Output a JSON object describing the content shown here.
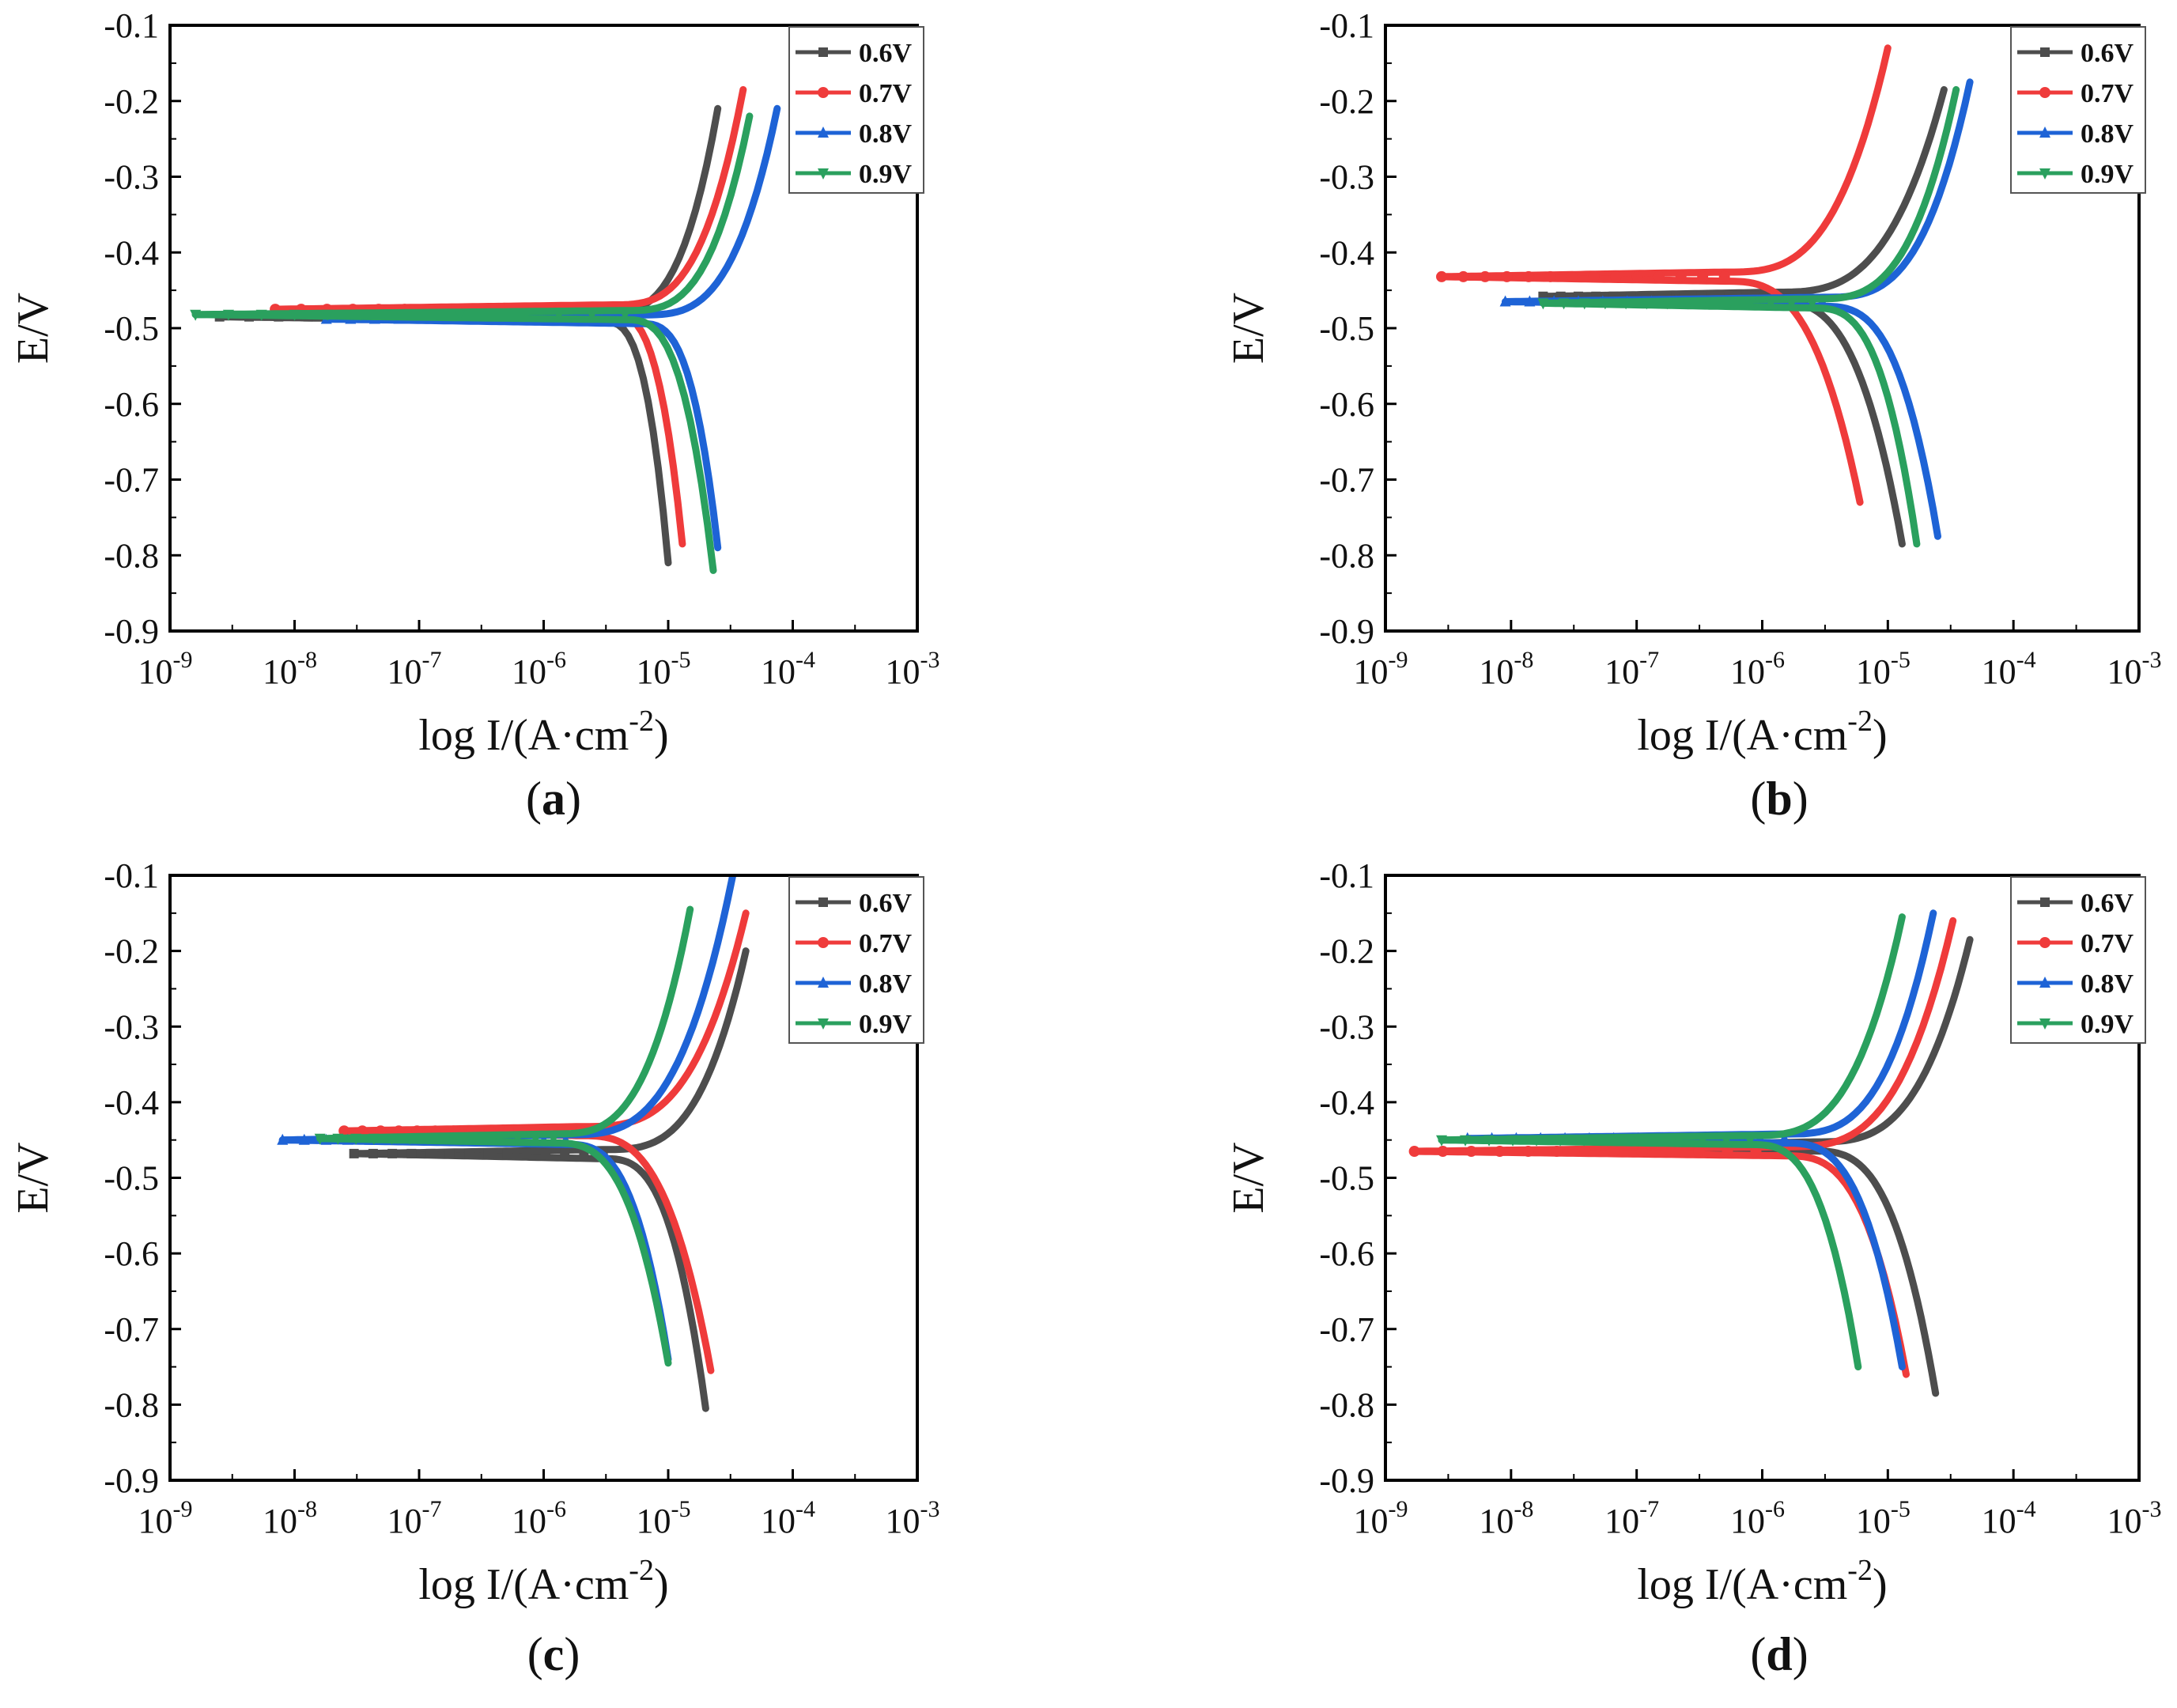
{
  "figure": {
    "panel_order": [
      "a",
      "b",
      "c",
      "d"
    ]
  },
  "series_colors": {
    "0.6V": "#4d4d4d",
    "0.7V": "#ef3b3b",
    "0.8V": "#1e63d6",
    "0.9V": "#2aa05e"
  },
  "chart_data": [
    {
      "id": "a",
      "type": "line",
      "caption_letter": "a",
      "xlabel_main": "log I/(A·cm",
      "xlabel_sup": "-2",
      "xlabel_close": ")",
      "ylabel": "E/V",
      "x_scale": "log",
      "xlim": [
        1e-09,
        0.001
      ],
      "ylim": [
        -0.9,
        -0.1
      ],
      "x_ticks": [
        -9,
        -8,
        -7,
        -6,
        -5,
        -4,
        -3
      ],
      "x_tick_base": "10",
      "y_ticks": [
        "-0.9",
        "-0.8",
        "-0.7",
        "-0.6",
        "-0.5",
        "-0.4",
        "-0.3",
        "-0.2",
        "-0.1"
      ],
      "legend_position": "top-right",
      "series": [
        {
          "name": "0.6V",
          "marker": "square",
          "ecorr": -0.485,
          "x_start": 2.5e-09,
          "icorr": 3e-06,
          "anodic_end": [
            2.5e-05,
            -0.21
          ],
          "cathodic_end": [
            1e-05,
            -0.81
          ]
        },
        {
          "name": "0.7V",
          "marker": "circle",
          "ecorr": -0.475,
          "x_start": 7e-09,
          "icorr": 3.5e-06,
          "anodic_end": [
            4e-05,
            -0.185
          ],
          "cathodic_end": [
            1.3e-05,
            -0.785
          ]
        },
        {
          "name": "0.8V",
          "marker": "triangle-up",
          "ecorr": -0.488,
          "x_start": 1.8e-08,
          "icorr": 6e-06,
          "anodic_end": [
            7.5e-05,
            -0.21
          ],
          "cathodic_end": [
            2.5e-05,
            -0.79
          ]
        },
        {
          "name": "0.9V",
          "marker": "triangle-down",
          "ecorr": -0.482,
          "x_start": 1.6e-09,
          "icorr": 4.5e-06,
          "anodic_end": [
            4.5e-05,
            -0.22
          ],
          "cathodic_end": [
            2.3e-05,
            -0.82
          ]
        }
      ]
    },
    {
      "id": "b",
      "type": "line",
      "caption_letter": "b",
      "xlabel_main": "log I/(A·cm",
      "xlabel_sup": "-2",
      "xlabel_close": ")",
      "ylabel": "E/V",
      "x_scale": "log",
      "xlim": [
        1e-09,
        0.001
      ],
      "ylim": [
        -0.9,
        -0.1
      ],
      "x_ticks": [
        -9,
        -8,
        -7,
        -6,
        -5,
        -4,
        -3
      ],
      "x_tick_base": "10",
      "y_ticks": [
        "-0.9",
        "-0.8",
        "-0.7",
        "-0.6",
        "-0.5",
        "-0.4",
        "-0.3",
        "-0.2",
        "-0.1"
      ],
      "legend_position": "top-right",
      "series": [
        {
          "name": "0.6V",
          "marker": "square",
          "ecorr": -0.458,
          "x_start": 1.8e-08,
          "icorr": 1.2e-06,
          "anodic_end": [
            2.8e-05,
            -0.185
          ],
          "cathodic_end": [
            1.3e-05,
            -0.785
          ]
        },
        {
          "name": "0.7V",
          "marker": "circle",
          "ecorr": -0.432,
          "x_start": 2.8e-09,
          "icorr": 5e-07,
          "anodic_end": [
            1e-05,
            -0.13
          ],
          "cathodic_end": [
            6e-06,
            -0.73
          ]
        },
        {
          "name": "0.8V",
          "marker": "triangle-up",
          "ecorr": -0.465,
          "x_start": 9e-09,
          "icorr": 3e-06,
          "anodic_end": [
            4.5e-05,
            -0.175
          ],
          "cathodic_end": [
            2.5e-05,
            -0.775
          ]
        },
        {
          "name": "0.9V",
          "marker": "triangle-down",
          "ecorr": -0.467,
          "x_start": 1.8e-08,
          "icorr": 2.5e-06,
          "anodic_end": [
            3.5e-05,
            -0.185
          ],
          "cathodic_end": [
            1.7e-05,
            -0.785
          ]
        }
      ]
    },
    {
      "id": "c",
      "type": "line",
      "caption_letter": "c",
      "xlabel_main": "log I/(A·cm",
      "xlabel_sup": "-2",
      "xlabel_close": ")",
      "ylabel": "E/V",
      "x_scale": "log",
      "xlim": [
        1e-09,
        0.001
      ],
      "ylim": [
        -0.9,
        -0.1
      ],
      "x_ticks": [
        -9,
        -8,
        -7,
        -6,
        -5,
        -4,
        -3
      ],
      "x_tick_base": "10",
      "y_ticks": [
        "-0.9",
        "-0.8",
        "-0.7",
        "-0.6",
        "-0.5",
        "-0.4",
        "-0.3",
        "-0.2",
        "-0.1"
      ],
      "legend_position": "top-right",
      "series": [
        {
          "name": "0.6V",
          "marker": "square",
          "ecorr": -0.468,
          "x_start": 3e-08,
          "icorr": 3e-06,
          "anodic_end": [
            4.2e-05,
            -0.2
          ],
          "cathodic_end": [
            2e-05,
            -0.805
          ]
        },
        {
          "name": "0.7V",
          "marker": "circle",
          "ecorr": -0.438,
          "x_start": 2.5e-08,
          "icorr": 2e-06,
          "anodic_end": [
            4.2e-05,
            -0.15
          ],
          "cathodic_end": [
            2.2e-05,
            -0.755
          ]
        },
        {
          "name": "0.8V",
          "marker": "triangle-up",
          "ecorr": -0.45,
          "x_start": 8e-09,
          "icorr": 1.5e-06,
          "anodic_end": [
            3.3e-05,
            -0.1
          ],
          "cathodic_end": [
            1e-05,
            -0.74
          ]
        },
        {
          "name": "0.9V",
          "marker": "triangle-down",
          "ecorr": -0.448,
          "x_start": 1.6e-08,
          "icorr": 1.2e-06,
          "anodic_end": [
            1.5e-05,
            -0.145
          ],
          "cathodic_end": [
            1e-05,
            -0.745
          ]
        }
      ]
    },
    {
      "id": "d",
      "type": "line",
      "caption_letter": "d",
      "xlabel_main": "log I/(A·cm",
      "xlabel_sup": "-2",
      "xlabel_close": ")",
      "ylabel": "E/V",
      "x_scale": "log",
      "xlim": [
        1e-09,
        0.001
      ],
      "ylim": [
        -0.9,
        -0.1
      ],
      "x_ticks": [
        -9,
        -8,
        -7,
        -6,
        -5,
        -4,
        -3
      ],
      "x_tick_base": "10",
      "y_ticks": [
        "-0.9",
        "-0.8",
        "-0.7",
        "-0.6",
        "-0.5",
        "-0.4",
        "-0.3",
        "-0.2",
        "-0.1"
      ],
      "legend_position": "top-right",
      "series": [
        {
          "name": "0.6V",
          "marker": "square",
          "ecorr": -0.458,
          "x_start": 6e-08,
          "icorr": 2.5e-06,
          "anodic_end": [
            4.5e-05,
            -0.185
          ],
          "cathodic_end": [
            2.4e-05,
            -0.785
          ]
        },
        {
          "name": "0.7V",
          "marker": "circle",
          "ecorr": -0.465,
          "x_start": 1.7e-09,
          "icorr": 1.5e-06,
          "anodic_end": [
            3.3e-05,
            -0.16
          ],
          "cathodic_end": [
            1.4e-05,
            -0.76
          ]
        },
        {
          "name": "0.8V",
          "marker": "triangle-up",
          "ecorr": -0.448,
          "x_start": 4.5e-09,
          "icorr": 1.5e-06,
          "anodic_end": [
            2.3e-05,
            -0.15
          ],
          "cathodic_end": [
            1.3e-05,
            -0.75
          ]
        },
        {
          "name": "0.9V",
          "marker": "triangle-down",
          "ecorr": -0.45,
          "x_start": 2.8e-09,
          "icorr": 8e-07,
          "anodic_end": [
            1.3e-05,
            -0.155
          ],
          "cathodic_end": [
            5.8e-06,
            -0.75
          ]
        }
      ]
    }
  ]
}
